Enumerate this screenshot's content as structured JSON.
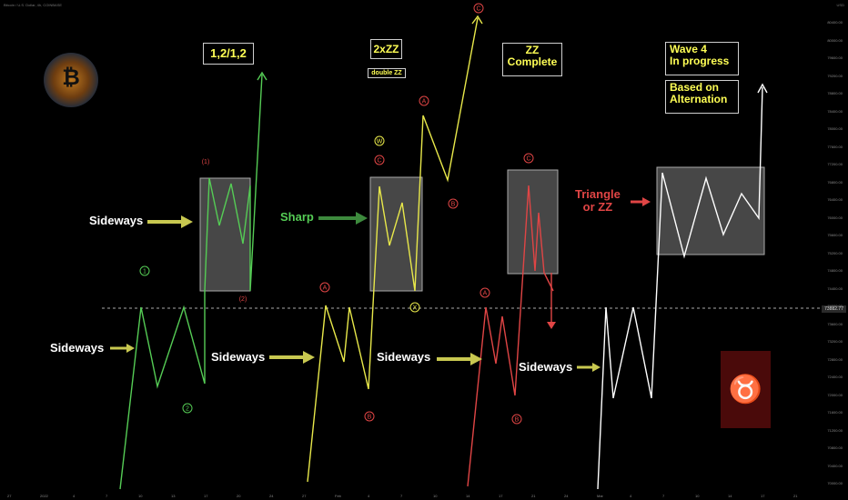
{
  "header": {
    "symbol": "Bitcoin / U.S. Dollar, 4h, COINBASE",
    "currency": "USD"
  },
  "price_line": {
    "label": "73882.77"
  },
  "y_axis": [
    "80400.00",
    "80000.00",
    "79600.00",
    "79200.00",
    "78800.00",
    "78400.00",
    "78000.00",
    "77600.00",
    "77200.00",
    "76800.00",
    "76400.00",
    "76000.00",
    "75600.00",
    "75200.00",
    "74800.00",
    "74400.00",
    "74000.00",
    "73600.00",
    "73200.00",
    "72800.00",
    "72400.00",
    "72000.00",
    "71600.00",
    "71200.00",
    "70800.00",
    "70400.00",
    "70000.00"
  ],
  "x_axis": [
    "27",
    "2022",
    "4",
    "7",
    "10",
    "13",
    "17",
    "20",
    "24",
    "27",
    "Feb",
    "4",
    "7",
    "10",
    "14",
    "17",
    "21",
    "24",
    "Mar",
    "4",
    "7",
    "10",
    "14",
    "17",
    "21"
  ],
  "boxes": {
    "b1": "1,2/1,2",
    "b2": "2xZZ",
    "b2s": "double ZZ",
    "b3": "ZZ\nComplete",
    "b4": "Wave 4\nIn progress",
    "b5": "Based on\nAlternation"
  },
  "annotations": {
    "sideways_1": "Sideways",
    "sideways_2": "Sideways",
    "sideways_3": "Sideways",
    "sideways_4": "Sideways",
    "sideways_5": "Sideways",
    "sharp": "Sharp",
    "triangle": "Triangle\nor ZZ"
  },
  "wave_labels": {
    "g1": "1",
    "g2": "2",
    "gp1": "(1)",
    "gp2": "(2)",
    "yA": "A",
    "yB": "B",
    "yW": "W",
    "yC": "C",
    "yX": "X",
    "yA2": "A",
    "yB2": "B",
    "yC2": "C",
    "rA": "A",
    "rB": "B",
    "rC": "C"
  },
  "colors": {
    "green": "#55cc55",
    "yellow": "#e8e84a",
    "red": "#e04545",
    "white": "#ffffff",
    "arrow": "#c8c850"
  },
  "icons": {
    "logo": "bitcoin-logo-icon",
    "avatar": "bull-avatar-icon"
  }
}
